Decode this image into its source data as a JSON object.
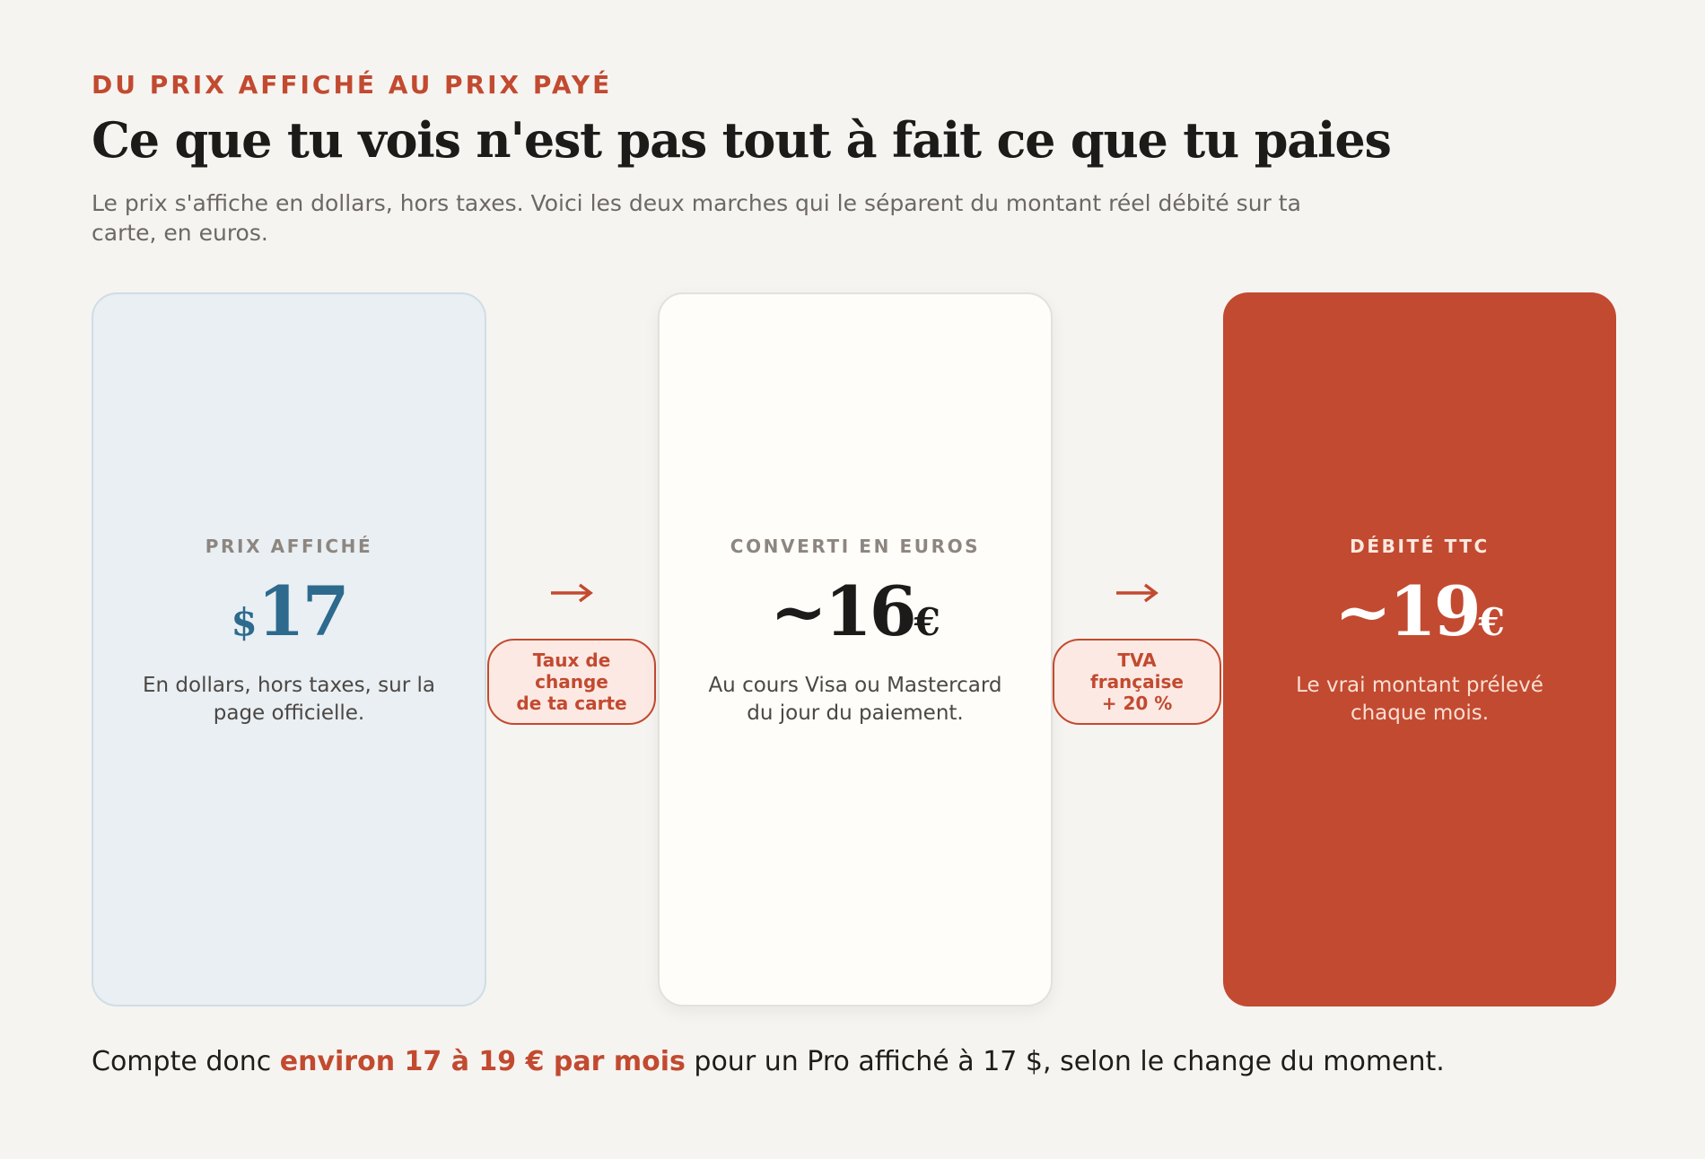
{
  "header": {
    "eyebrow": "DU PRIX AFFICHÉ AU PRIX PAYÉ",
    "title": "Ce que tu vois n'est pas tout à fait ce que tu paies",
    "subtitle": "Le prix s'affiche en dollars, hors taxes. Voici les deux marches qui le séparent du montant réel débité sur ta carte, en euros."
  },
  "cards": [
    {
      "label": "PRIX AFFICHÉ",
      "prefix": "$",
      "amount": "17",
      "suffix": "",
      "description": "En dollars, hors taxes, sur la page officielle."
    },
    {
      "label": "CONVERTI EN EUROS",
      "prefix": "",
      "amount": "~16",
      "suffix": "€",
      "description": "Au cours Visa ou Mastercard du jour du paiement."
    },
    {
      "label": "DÉBITÉ TTC",
      "prefix": "",
      "amount": "~19",
      "suffix": "€",
      "description": "Le vrai montant prélevé chaque mois."
    }
  ],
  "steps": [
    {
      "line1": "Taux de",
      "line2": "change",
      "line3": "de ta carte"
    },
    {
      "line1": "TVA",
      "line2": "française",
      "line3": "+ 20 %"
    }
  ],
  "footer": {
    "before": "Compte donc ",
    "highlight": "environ 17 à 19 € par mois",
    "after": " pour un Pro affiché à 17 $, selon le change du moment."
  },
  "colors": {
    "accent": "#c24a30",
    "blue": "#2d6a8e",
    "background": "#f6f4f0"
  },
  "icons": [
    "right-arrow-icon",
    "right-arrow-icon"
  ]
}
